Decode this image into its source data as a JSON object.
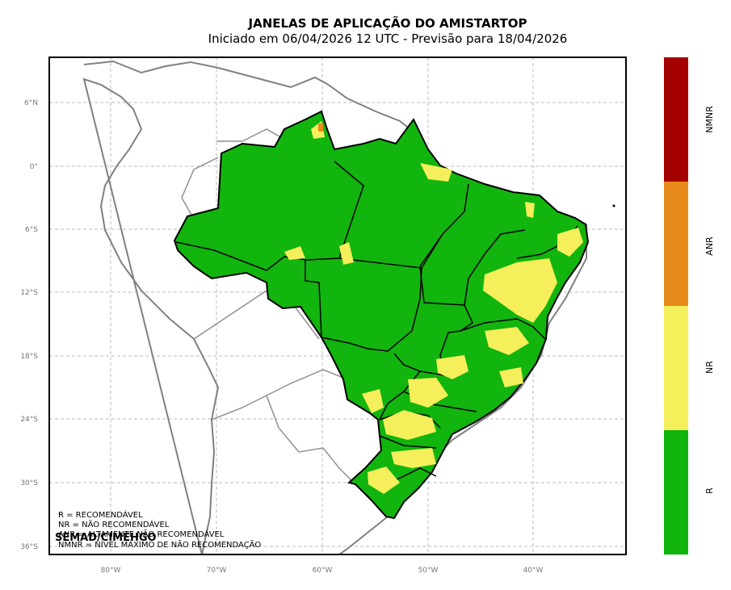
{
  "header": {
    "title": "JANELAS DE APLICAÇÃO DO AMISTARTOP",
    "subtitle": "Iniciado em 06/04/2026 12 UTC - Previsão para 18/04/2026"
  },
  "map": {
    "lat_labels": [
      "6°N",
      "0°",
      "6°S",
      "12°S",
      "18°S",
      "24°S",
      "30°S",
      "36°S"
    ],
    "lon_labels": [
      "80°W",
      "70°W",
      "60°W",
      "50°W",
      "40°W"
    ],
    "grid": true
  },
  "colorbar": {
    "categories": [
      {
        "code": "NMNR",
        "color": "#a50000"
      },
      {
        "code": "ANR",
        "color": "#e68a1a"
      },
      {
        "code": "NR",
        "color": "#f4ef5a"
      },
      {
        "code": "R",
        "color": "#12b40e"
      }
    ]
  },
  "legend": {
    "r": "R = RECOMENDÁVEL",
    "nr": "NR = NÃO RECOMENDÁVEL",
    "anr": "ANR = ALTAMENTE NÃO RECOMENDÁVEL",
    "nmnr": "NMNR = NÍVEL MÁXIMO DE NÃO RECOMENDAÇÃO"
  },
  "credit": "SEMAD/CIMEHGO"
}
